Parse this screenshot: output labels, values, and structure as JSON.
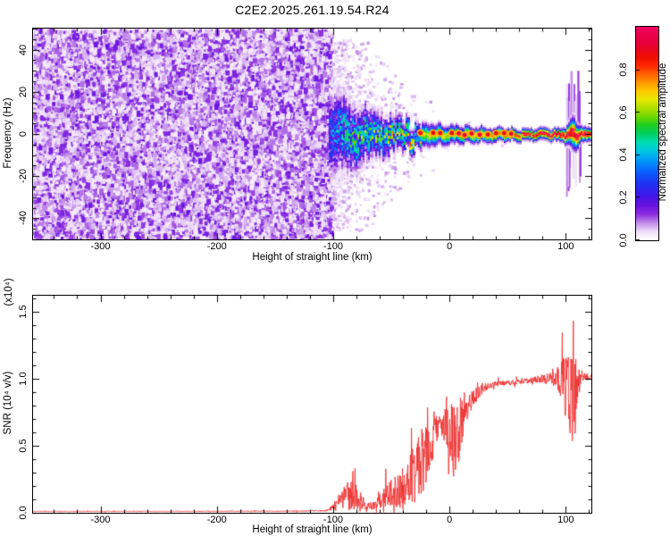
{
  "title": "C2E2.2025.261.19.54.R24",
  "chart_data": [
    {
      "id": "spectrogram",
      "type": "heatmap",
      "xlabel": "Height of straight line (km)",
      "ylabel": "Frequency (Hz)",
      "xlim": [
        -358,
        122
      ],
      "ylim": [
        -50,
        50
      ],
      "x_major_ticks": [
        -300,
        -200,
        -100,
        0,
        100
      ],
      "x_minor_step": 20,
      "y_major_ticks": [
        40,
        20,
        0,
        -20,
        -40
      ],
      "y_minor_step": 5,
      "colorbar": {
        "label": "Normalized spectral amplitude",
        "ticks": [
          "0.0",
          "0.2",
          "0.4",
          "0.6",
          "0.8"
        ],
        "range": [
          0,
          1
        ]
      },
      "colormap_stops": [
        [
          0.0,
          "#ffffff"
        ],
        [
          0.04,
          "#eedcf8"
        ],
        [
          0.08,
          "#c18ae8"
        ],
        [
          0.12,
          "#8d2fe0"
        ],
        [
          0.16,
          "#6a14e0"
        ],
        [
          0.2,
          "#4814e8"
        ],
        [
          0.26,
          "#2030f0"
        ],
        [
          0.32,
          "#0a60ff"
        ],
        [
          0.38,
          "#00a0f8"
        ],
        [
          0.42,
          "#00c8e0"
        ],
        [
          0.46,
          "#00ddb0"
        ],
        [
          0.5,
          "#00d060"
        ],
        [
          0.54,
          "#20cc20"
        ],
        [
          0.58,
          "#70d800"
        ],
        [
          0.62,
          "#b0e000"
        ],
        [
          0.66,
          "#e8e800"
        ],
        [
          0.7,
          "#ffc800"
        ],
        [
          0.74,
          "#ff9800"
        ],
        [
          0.78,
          "#ff6000"
        ],
        [
          0.82,
          "#ff2800"
        ],
        [
          0.86,
          "#ee0e00"
        ],
        [
          0.92,
          "#e60038"
        ],
        [
          1.0,
          "#f00060"
        ]
      ],
      "noise_region": {
        "x_start": -358,
        "x_end": -102,
        "max_amplitude": 0.14
      },
      "signal_profile": [
        [
          -102,
          24,
          0.3
        ],
        [
          -95,
          21,
          0.38
        ],
        [
          -88,
          19,
          0.42
        ],
        [
          -80,
          16,
          0.46
        ],
        [
          -72,
          14,
          0.5
        ],
        [
          -65,
          12,
          0.5
        ],
        [
          -58,
          11,
          0.52
        ],
        [
          -50,
          9.5,
          0.56
        ],
        [
          -42,
          8.5,
          0.58
        ],
        [
          -35,
          7.5,
          0.6
        ],
        [
          -28,
          6.5,
          0.62
        ],
        [
          -20,
          6,
          0.63
        ],
        [
          -12,
          5.5,
          0.65
        ],
        [
          -5,
          5,
          0.66
        ],
        [
          0,
          4.8,
          0.66
        ],
        [
          10,
          4.5,
          0.68
        ],
        [
          20,
          4,
          0.7
        ],
        [
          30,
          3.8,
          0.72
        ],
        [
          40,
          3.6,
          0.76
        ],
        [
          50,
          3.2,
          0.8
        ],
        [
          60,
          3,
          0.86
        ],
        [
          70,
          3,
          0.9
        ],
        [
          80,
          3,
          0.93
        ],
        [
          90,
          3,
          0.95
        ],
        [
          97,
          3.5,
          0.95
        ],
        [
          102,
          5.5,
          0.92
        ],
        [
          106,
          9,
          0.88
        ],
        [
          109,
          6.5,
          0.92
        ],
        [
          112,
          4,
          0.95
        ],
        [
          122,
          3.2,
          0.95
        ]
      ],
      "hotspots_km": [
        -25,
        -14,
        -8,
        2,
        8,
        13,
        19,
        26,
        33,
        40,
        47,
        53
      ],
      "disturbance": {
        "x_center": 106,
        "x_halfwidth": 6,
        "max_freq_extent": 26
      }
    },
    {
      "id": "snr",
      "type": "line",
      "xlabel": "Height of straight line (km)",
      "ylabel": "SNR (10⁴ v/v)",
      "axis_multiplier": "(x10⁴)",
      "xlim": [
        -358,
        122
      ],
      "ylim": [
        0,
        1.62
      ],
      "x_major_ticks": [
        -300,
        -200,
        -100,
        0,
        100
      ],
      "x_minor_step": 20,
      "y_major_ticks": [
        "0.0",
        "0.5",
        "1.0",
        "1.5"
      ],
      "y_minor_step": 0.1,
      "line_color": "#ee3333",
      "envelope_points": [
        [
          -358,
          0.01,
          0.006
        ],
        [
          -200,
          0.011,
          0.007
        ],
        [
          -130,
          0.012,
          0.008
        ],
        [
          -107,
          0.015,
          0.012
        ],
        [
          -100,
          0.04,
          0.05
        ],
        [
          -95,
          0.09,
          0.12
        ],
        [
          -90,
          0.12,
          0.2
        ],
        [
          -85,
          0.14,
          0.28
        ],
        [
          -80,
          0.12,
          0.22
        ],
        [
          -76,
          0.09,
          0.14
        ],
        [
          -71,
          0.05,
          0.07
        ],
        [
          -66,
          0.05,
          0.06
        ],
        [
          -61,
          0.08,
          0.1
        ],
        [
          -56,
          0.12,
          0.18
        ],
        [
          -51,
          0.14,
          0.22
        ],
        [
          -46,
          0.16,
          0.28
        ],
        [
          -41,
          0.18,
          0.34
        ],
        [
          -36,
          0.22,
          0.42
        ],
        [
          -31,
          0.28,
          0.5
        ],
        [
          -27,
          0.33,
          0.52
        ],
        [
          -23,
          0.4,
          0.55
        ],
        [
          -19,
          0.48,
          0.58
        ],
        [
          -16,
          0.55,
          0.5
        ],
        [
          -13,
          0.6,
          0.35
        ],
        [
          -10,
          0.62,
          0.18
        ],
        [
          -7,
          0.64,
          0.14
        ],
        [
          -4,
          0.65,
          0.28
        ],
        [
          -1,
          0.62,
          0.45
        ],
        [
          2,
          0.56,
          0.58
        ],
        [
          5,
          0.52,
          0.62
        ],
        [
          8,
          0.6,
          0.55
        ],
        [
          11,
          0.7,
          0.42
        ],
        [
          14,
          0.77,
          0.3
        ],
        [
          17,
          0.81,
          0.22
        ],
        [
          20,
          0.85,
          0.16
        ],
        [
          24,
          0.89,
          0.11
        ],
        [
          28,
          0.92,
          0.08
        ],
        [
          34,
          0.95,
          0.06
        ],
        [
          42,
          0.96,
          0.05
        ],
        [
          52,
          0.97,
          0.04
        ],
        [
          62,
          0.98,
          0.04
        ],
        [
          72,
          0.99,
          0.05
        ],
        [
          80,
          1.0,
          0.07
        ],
        [
          86,
          1.0,
          0.1
        ],
        [
          91,
          1.01,
          0.16
        ],
        [
          95,
          1.0,
          0.25
        ],
        [
          98,
          0.98,
          0.45
        ],
        [
          101,
          0.93,
          0.62
        ],
        [
          104,
          0.88,
          0.85
        ],
        [
          107,
          0.85,
          0.88
        ],
        [
          109,
          0.92,
          0.6
        ],
        [
          111,
          0.99,
          0.3
        ],
        [
          113,
          1.02,
          0.1
        ],
        [
          116,
          1.02,
          0.06
        ],
        [
          122,
          1.01,
          0.045
        ]
      ]
    }
  ]
}
